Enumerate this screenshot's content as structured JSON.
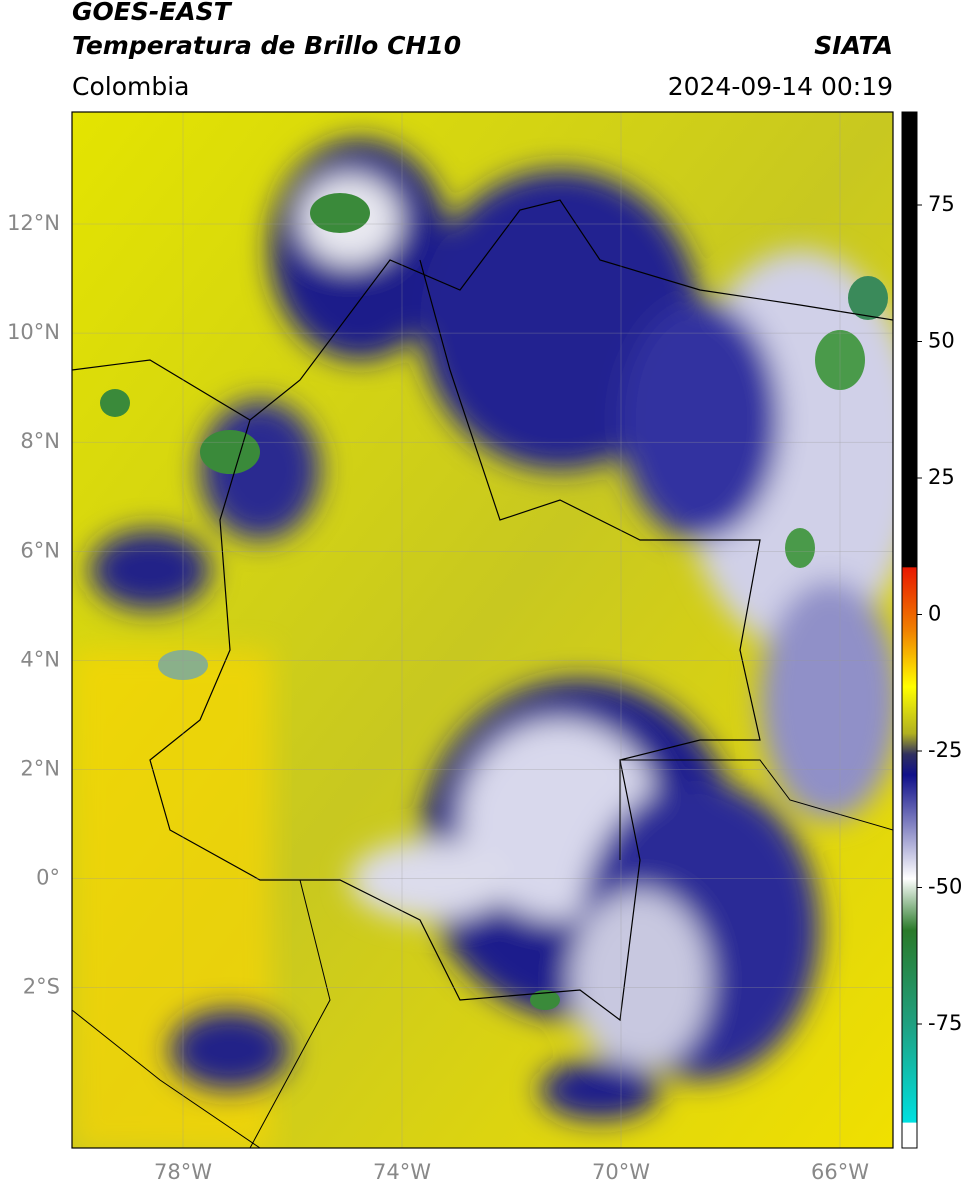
{
  "header": {
    "title": "GOES-EAST",
    "subtitle": "Temperatura de Brillo CH10",
    "region": "Colombia",
    "source": "SIATA",
    "datetime": "2024-09-14 00:19"
  },
  "map": {
    "lat_labels": [
      "12°N",
      "10°N",
      "8°N",
      "6°N",
      "4°N",
      "2°N",
      "0°",
      "2°S"
    ],
    "lon_labels": [
      "78°W",
      "74°W",
      "70°W",
      "66°W"
    ]
  },
  "colorbar": {
    "tick_labels": [
      "75",
      "50",
      "25",
      "0",
      "-25",
      "-50",
      "-75"
    ]
  }
}
